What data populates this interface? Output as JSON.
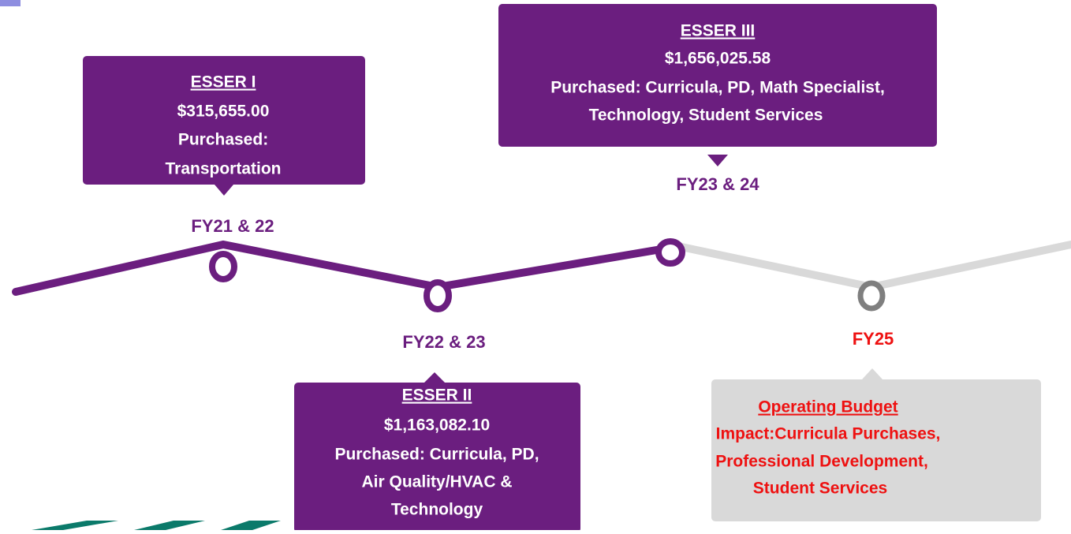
{
  "timeline": {
    "nodes": [
      {
        "label": "FY21 & 22"
      },
      {
        "label": "FY22 & 23"
      },
      {
        "label": "FY23 & 24"
      },
      {
        "label": "FY25"
      }
    ],
    "boxes": [
      {
        "title": "ESSER I",
        "amount": "$315,655.00",
        "lines": [
          "Purchased:",
          "Transportation"
        ]
      },
      {
        "title": "ESSER II",
        "amount": "$1,163,082.10",
        "lines": [
          "Purchased: Curricula, PD,",
          "Air Quality/HVAC &",
          "Technology"
        ]
      },
      {
        "title": "ESSER III",
        "amount": "$1,656,025.58",
        "lines": [
          "Purchased: Curricula, PD, Math Specialist,",
          "Technology, Student Services"
        ]
      },
      {
        "title": "Operating Budget",
        "lines": [
          "Impact:Curricula Purchases,",
          "Professional Development,",
          "Student Services"
        ]
      }
    ]
  }
}
